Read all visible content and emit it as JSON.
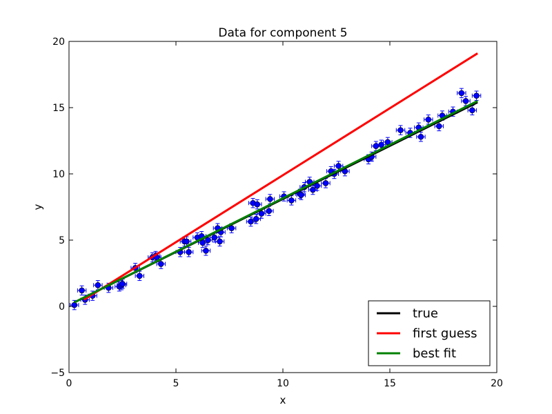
{
  "chart_data": {
    "type": "scatter",
    "title": "Data for component 5",
    "xlabel": "x",
    "ylabel": "y",
    "xlim": [
      0,
      20
    ],
    "ylim": [
      -5,
      20
    ],
    "xticks": [
      "0",
      "5",
      "10",
      "15",
      "20"
    ],
    "yticks": [
      "−5",
      "0",
      "5",
      "10",
      "15",
      "20"
    ],
    "grid": false,
    "legend_position": "lower-right",
    "series": [
      {
        "name": "true",
        "kind": "line",
        "color": "#000000",
        "x": [
          0.25,
          19.1
        ],
        "y": [
          0.3,
          15.4
        ]
      },
      {
        "name": "first guess",
        "kind": "line",
        "color": "#ff0000",
        "x": [
          0.7,
          19.1
        ],
        "y": [
          0.5,
          19.1
        ]
      },
      {
        "name": "best fit",
        "kind": "line",
        "color": "#008000",
        "x": [
          0.25,
          19.1
        ],
        "y": [
          0.3,
          15.5
        ]
      }
    ],
    "points": {
      "color": "#0000ff",
      "x": [
        0.25,
        0.6,
        0.75,
        1.1,
        1.35,
        1.85,
        2.35,
        2.45,
        2.5,
        3.1,
        3.3,
        3.9,
        4.05,
        4.1,
        4.3,
        5.2,
        5.4,
        5.5,
        5.6,
        6.0,
        6.2,
        6.25,
        6.4,
        6.5,
        6.8,
        6.95,
        7.05,
        7.1,
        7.6,
        8.5,
        8.6,
        8.75,
        8.8,
        9.0,
        9.35,
        9.4,
        10.05,
        10.4,
        10.8,
        10.85,
        11.0,
        11.25,
        11.4,
        11.6,
        12.0,
        12.25,
        12.4,
        12.6,
        12.9,
        14.0,
        14.15,
        14.35,
        14.6,
        14.9,
        15.5,
        15.95,
        16.35,
        16.45,
        16.8,
        17.3,
        17.45,
        17.95,
        18.35,
        18.55,
        18.85,
        19.05
      ],
      "y": [
        0.1,
        1.2,
        0.5,
        0.8,
        1.6,
        1.4,
        1.5,
        1.6,
        1.7,
        2.9,
        2.3,
        3.7,
        3.8,
        3.7,
        3.2,
        4.1,
        4.9,
        4.9,
        4.1,
        5.2,
        5.3,
        4.8,
        4.2,
        5.0,
        5.2,
        5.9,
        4.9,
        5.6,
        5.9,
        6.4,
        7.8,
        6.6,
        7.7,
        7.0,
        7.2,
        8.1,
        8.3,
        8.0,
        8.5,
        8.4,
        9.0,
        9.4,
        8.8,
        9.1,
        9.3,
        10.2,
        10.0,
        10.6,
        10.2,
        11.1,
        11.3,
        12.1,
        12.2,
        12.4,
        13.3,
        13.1,
        13.5,
        12.8,
        14.1,
        13.6,
        14.4,
        14.7,
        16.1,
        15.5,
        14.8,
        15.9
      ],
      "xerr": 0.2,
      "yerr": 0.35
    }
  }
}
